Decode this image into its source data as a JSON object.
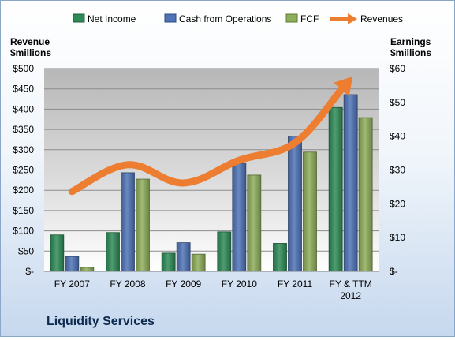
{
  "chart_data": {
    "type": "bar+line",
    "company": "Liquidity Services",
    "categories": [
      "FY 2007",
      "FY 2008",
      "FY 2009",
      "FY 2010",
      "FY 2011",
      "FY & TTM 2012"
    ],
    "left_axis": {
      "title_line1": "Revenue",
      "title_line2": "$millions",
      "ylim": [
        0,
        500
      ],
      "ticks": [
        0,
        50,
        100,
        150,
        200,
        250,
        300,
        350,
        400,
        450,
        500
      ],
      "tick_labels": [
        "$-",
        "$50",
        "$100",
        "$150",
        "$200",
        "$250",
        "$300",
        "$350",
        "$400",
        "$450",
        "$500"
      ]
    },
    "right_axis": {
      "title_line1": "Earnings",
      "title_line2": "$millions",
      "ylim": [
        0,
        60
      ],
      "ticks": [
        0,
        10,
        20,
        30,
        40,
        50,
        60
      ],
      "tick_labels": [
        "$-",
        "$10",
        "$20",
        "$30",
        "$40",
        "$50",
        "$60"
      ]
    },
    "series": [
      {
        "name": "Net Income",
        "type": "bar",
        "axis": "right",
        "color": "#2e8b57",
        "values": [
          10.8,
          11.5,
          5.4,
          11.7,
          8.3,
          48.5
        ]
      },
      {
        "name": "Cash from Operations",
        "type": "bar",
        "axis": "right",
        "color": "#4f73b6",
        "values": [
          4.4,
          29.2,
          8.5,
          32.0,
          40.0,
          52.3
        ]
      },
      {
        "name": "FCF",
        "type": "bar",
        "axis": "right",
        "color": "#8fae5b",
        "values": [
          1.2,
          27.3,
          5.1,
          28.5,
          35.3,
          45.5
        ]
      },
      {
        "name": "Revenues",
        "type": "line",
        "axis": "left",
        "color": "#ed7d31",
        "values": [
          197,
          263,
          218,
          274,
          317,
          475
        ]
      }
    ],
    "grid": true,
    "legend": "top"
  }
}
